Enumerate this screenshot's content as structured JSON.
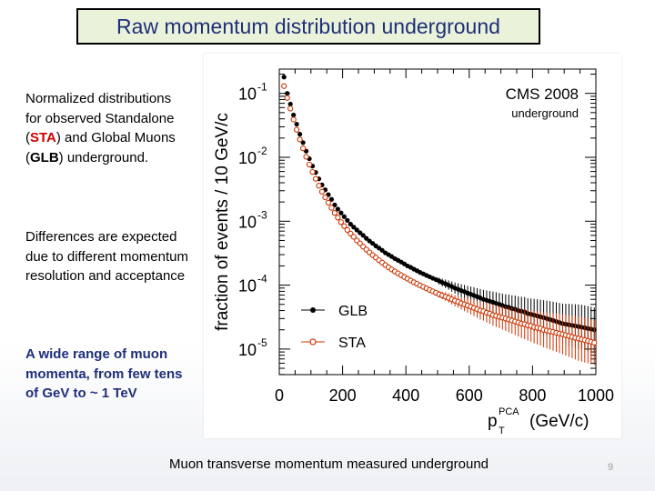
{
  "slide": {
    "title": "Raw momentum distribution underground",
    "para1": {
      "text_a": "Normalized distributions for observed Standalone (",
      "sta": "STA",
      "text_b": ") and Global Muons (",
      "glb": "GLB",
      "text_c": ") underground."
    },
    "para2": "Differences are expected due to different momentum resolution and acceptance",
    "para3": "A wide range of muon momenta, from  few tens of GeV to ~ 1 TeV",
    "caption": "Muon transverse momentum measured underground",
    "page_number": "9"
  },
  "chart_data": {
    "type": "scatter",
    "title": "CMS 2008",
    "subtitle": "underground",
    "xlabel": "p",
    "xlabel_sup": "PCA",
    "xlabel_sub": "T",
    "xlabel_unit": "(GeV/c)",
    "ylabel": "fraction of events / 10 GeV/c",
    "xlim": [
      0,
      1000
    ],
    "ylim_log10": [
      -5.4,
      -0.62
    ],
    "y_scale": "log",
    "xticks": [
      0,
      200,
      400,
      600,
      800,
      1000
    ],
    "xtick_labels": [
      "0",
      "200",
      "400",
      "600",
      "800",
      "1000"
    ],
    "yticks_log10": [
      -1,
      -2,
      -3,
      -4,
      -5
    ],
    "ytick_base": "10",
    "ytick_exponents": [
      "-1",
      "-2",
      "-3",
      "-4",
      "-5"
    ],
    "legend_placement": "bottom-left",
    "series": [
      {
        "name": "GLB",
        "color": "#000000",
        "marker": "filled-circle",
        "points": [
          [
            15,
            0.18
          ],
          [
            25,
            0.1
          ],
          [
            35,
            0.068
          ],
          [
            45,
            0.046
          ],
          [
            55,
            0.033
          ],
          [
            65,
            0.023
          ],
          [
            75,
            0.017
          ],
          [
            85,
            0.0125
          ],
          [
            95,
            0.0095
          ],
          [
            105,
            0.0073
          ],
          [
            115,
            0.0058
          ],
          [
            125,
            0.0046
          ],
          [
            135,
            0.0037
          ],
          [
            145,
            0.0031
          ],
          [
            155,
            0.0026
          ],
          [
            165,
            0.0022
          ],
          [
            175,
            0.0018
          ],
          [
            185,
            0.00155
          ],
          [
            195,
            0.00135
          ],
          [
            205,
            0.00118
          ],
          [
            215,
            0.00103
          ],
          [
            225,
            0.0009
          ],
          [
            235,
            0.00081
          ],
          [
            245,
            0.00073
          ],
          [
            255,
            0.00066
          ],
          [
            265,
            0.0006
          ],
          [
            275,
            0.00054
          ],
          [
            285,
            0.00049
          ],
          [
            295,
            0.00045
          ],
          [
            305,
            0.00041
          ],
          [
            315,
            0.00038
          ],
          [
            325,
            0.00035
          ],
          [
            335,
            0.00032
          ],
          [
            345,
            0.0003
          ],
          [
            355,
            0.00028
          ],
          [
            365,
            0.00026
          ],
          [
            375,
            0.000245
          ],
          [
            385,
            0.00023
          ],
          [
            395,
            0.000215
          ],
          [
            405,
            0.0002
          ],
          [
            415,
            0.00019
          ],
          [
            425,
            0.000178
          ],
          [
            435,
            0.000168
          ],
          [
            445,
            0.000158
          ],
          [
            455,
            0.00015
          ],
          [
            465,
            0.000142
          ],
          [
            475,
            0.000135
          ],
          [
            485,
            0.000128
          ],
          [
            495,
            0.000122
          ],
          [
            505,
            0.000116
          ],
          [
            515,
            0.00011
          ],
          [
            525,
            0.000105
          ],
          [
            535,
            0.0001
          ],
          [
            545,
            9.5e-05
          ],
          [
            555,
            9e-05
          ],
          [
            565,
            8.6e-05
          ],
          [
            575,
            8.2e-05
          ],
          [
            585,
            7.9e-05
          ],
          [
            595,
            7.5e-05
          ],
          [
            605,
            7.2e-05
          ],
          [
            615,
            6.9e-05
          ],
          [
            625,
            6.6e-05
          ],
          [
            635,
            6.3e-05
          ],
          [
            645,
            6e-05
          ],
          [
            655,
            5.8e-05
          ],
          [
            665,
            5.6e-05
          ],
          [
            675,
            5.4e-05
          ],
          [
            685,
            5.2e-05
          ],
          [
            695,
            5e-05
          ],
          [
            705,
            4.8e-05
          ],
          [
            715,
            4.6e-05
          ],
          [
            725,
            4.5e-05
          ],
          [
            735,
            4.3e-05
          ],
          [
            745,
            4.2e-05
          ],
          [
            755,
            4e-05
          ],
          [
            765,
            3.9e-05
          ],
          [
            775,
            3.8e-05
          ],
          [
            785,
            3.6e-05
          ],
          [
            795,
            3.5e-05
          ],
          [
            805,
            3.4e-05
          ],
          [
            815,
            3.3e-05
          ],
          [
            825,
            3.2e-05
          ],
          [
            835,
            3.1e-05
          ],
          [
            845,
            3e-05
          ],
          [
            855,
            2.9e-05
          ],
          [
            865,
            2.8e-05
          ],
          [
            875,
            2.7e-05
          ],
          [
            885,
            2.6e-05
          ],
          [
            895,
            2.5e-05
          ],
          [
            905,
            2.45e-05
          ],
          [
            915,
            2.4e-05
          ],
          [
            925,
            2.35e-05
          ],
          [
            935,
            2.3e-05
          ],
          [
            945,
            2.25e-05
          ],
          [
            955,
            2.2e-05
          ],
          [
            965,
            2.15e-05
          ],
          [
            975,
            2.1e-05
          ],
          [
            985,
            2.05e-05
          ],
          [
            995,
            2e-05
          ]
        ]
      },
      {
        "name": "STA",
        "color": "#cc3300",
        "marker": "open-circle",
        "points": [
          [
            15,
            0.13
          ],
          [
            25,
            0.085
          ],
          [
            35,
            0.058
          ],
          [
            45,
            0.039
          ],
          [
            55,
            0.027
          ],
          [
            65,
            0.019
          ],
          [
            75,
            0.0138
          ],
          [
            85,
            0.0102
          ],
          [
            95,
            0.0077
          ],
          [
            105,
            0.0059
          ],
          [
            115,
            0.0046
          ],
          [
            125,
            0.0036
          ],
          [
            135,
            0.0029
          ],
          [
            145,
            0.00236
          ],
          [
            155,
            0.00195
          ],
          [
            165,
            0.00162
          ],
          [
            175,
            0.00135
          ],
          [
            185,
            0.00114
          ],
          [
            195,
            0.00097
          ],
          [
            205,
            0.00084
          ],
          [
            215,
            0.00073
          ],
          [
            225,
            0.00064
          ],
          [
            235,
            0.00057
          ],
          [
            245,
            0.0005
          ],
          [
            255,
            0.00045
          ],
          [
            265,
            0.0004
          ],
          [
            275,
            0.00036
          ],
          [
            285,
            0.000325
          ],
          [
            295,
            0.000295
          ],
          [
            305,
            0.00027
          ],
          [
            315,
            0.000245
          ],
          [
            325,
            0.000225
          ],
          [
            335,
            0.000206
          ],
          [
            345,
            0.00019
          ],
          [
            355,
            0.000176
          ],
          [
            365,
            0.000164
          ],
          [
            375,
            0.000153
          ],
          [
            385,
            0.000143
          ],
          [
            395,
            0.000134
          ],
          [
            405,
            0.000126
          ],
          [
            415,
            0.000118
          ],
          [
            425,
            0.000111
          ],
          [
            435,
            0.000105
          ],
          [
            445,
            9.9e-05
          ],
          [
            455,
            9.4e-05
          ],
          [
            465,
            8.9e-05
          ],
          [
            475,
            8.4e-05
          ],
          [
            485,
            8e-05
          ],
          [
            495,
            7.6e-05
          ],
          [
            505,
            7.2e-05
          ],
          [
            515,
            6.9e-05
          ],
          [
            525,
            6.6e-05
          ],
          [
            535,
            6.3e-05
          ],
          [
            545,
            6e-05
          ],
          [
            555,
            5.7e-05
          ],
          [
            565,
            5.5e-05
          ],
          [
            575,
            5.2e-05
          ],
          [
            585,
            5e-05
          ],
          [
            595,
            4.8e-05
          ],
          [
            605,
            4.6e-05
          ],
          [
            615,
            4.4e-05
          ],
          [
            625,
            4.2e-05
          ],
          [
            635,
            4e-05
          ],
          [
            645,
            3.9e-05
          ],
          [
            655,
            3.7e-05
          ],
          [
            665,
            3.6e-05
          ],
          [
            675,
            3.4e-05
          ],
          [
            685,
            3.3e-05
          ],
          [
            695,
            3.2e-05
          ],
          [
            705,
            3.1e-05
          ],
          [
            715,
            3e-05
          ],
          [
            725,
            2.9e-05
          ],
          [
            735,
            2.8e-05
          ],
          [
            745,
            2.7e-05
          ],
          [
            755,
            2.6e-05
          ],
          [
            765,
            2.5e-05
          ],
          [
            775,
            2.45e-05
          ],
          [
            785,
            2.35e-05
          ],
          [
            795,
            2.3e-05
          ],
          [
            805,
            2.2e-05
          ],
          [
            815,
            2.15e-05
          ],
          [
            825,
            2.1e-05
          ],
          [
            835,
            2e-05
          ],
          [
            845,
            1.95e-05
          ],
          [
            855,
            1.9e-05
          ],
          [
            865,
            1.85e-05
          ],
          [
            875,
            1.8e-05
          ],
          [
            885,
            1.75e-05
          ],
          [
            895,
            1.7e-05
          ],
          [
            905,
            1.65e-05
          ],
          [
            915,
            1.6e-05
          ],
          [
            925,
            1.55e-05
          ],
          [
            935,
            1.5e-05
          ],
          [
            945,
            1.46e-05
          ],
          [
            955,
            1.42e-05
          ],
          [
            965,
            1.38e-05
          ],
          [
            975,
            1.34e-05
          ],
          [
            985,
            1.3e-05
          ],
          [
            995,
            1.26e-05
          ]
        ]
      }
    ]
  }
}
